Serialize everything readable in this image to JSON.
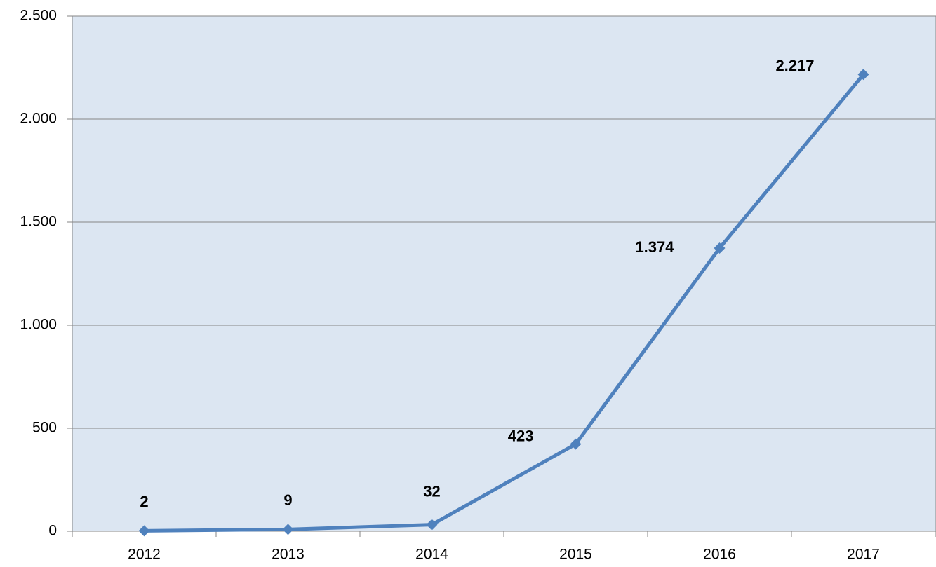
{
  "chart_data": {
    "type": "line",
    "categories": [
      "2012",
      "2013",
      "2014",
      "2015",
      "2016",
      "2017"
    ],
    "values": [
      2,
      9,
      32,
      423,
      1374,
      2217
    ],
    "value_labels": [
      "2",
      "9",
      "32",
      "423",
      "1.374",
      "2.217"
    ],
    "color": "#4f81bd",
    "ylim": [
      0,
      2500
    ],
    "yticks": [
      0,
      500,
      {
        "value": 1000,
        "label": "1.000"
      },
      {
        "value": 1500,
        "label": "1.500"
      },
      {
        "value": 2000,
        "label": "2.000"
      },
      {
        "value": 2500,
        "label": "2.500"
      }
    ],
    "grid": true
  }
}
